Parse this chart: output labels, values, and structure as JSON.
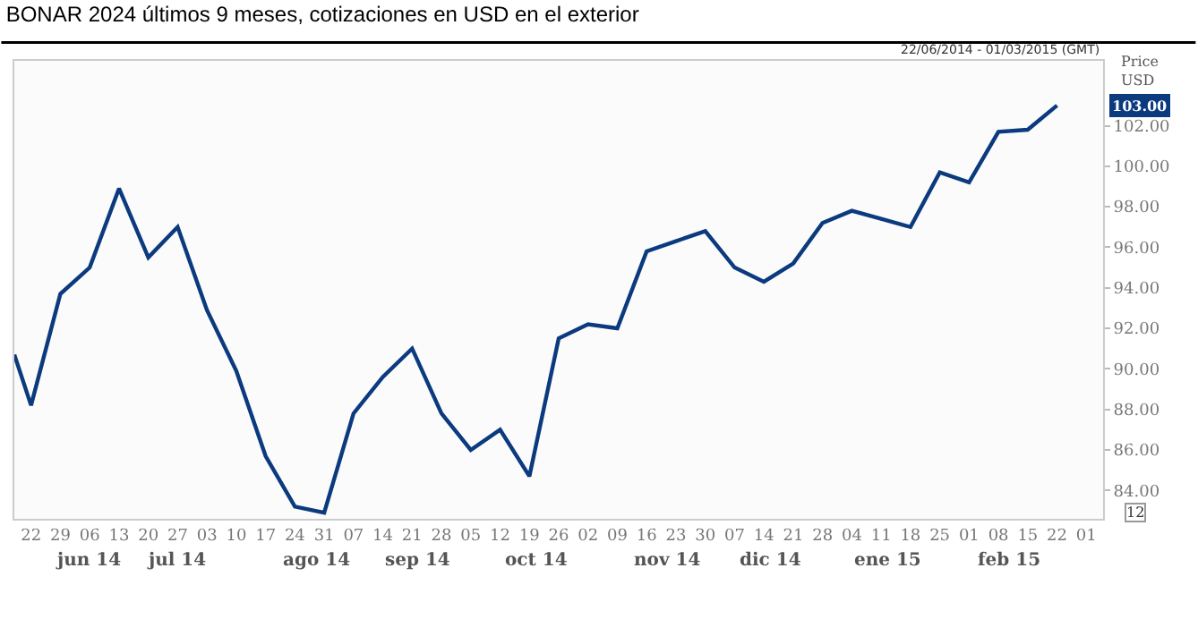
{
  "chart_data": {
    "type": "line",
    "title": "BONAR 2024 últimos 9 meses, cotizaciones en USD en el exterior",
    "ylabel": "Price\nUSD",
    "x": [
      "2014-06-18",
      "2014-06-22",
      "2014-06-29",
      "2014-07-06",
      "2014-07-13",
      "2014-07-20",
      "2014-07-27",
      "2014-08-03",
      "2014-08-10",
      "2014-08-17",
      "2014-08-24",
      "2014-08-31",
      "2014-09-07",
      "2014-09-14",
      "2014-09-21",
      "2014-09-28",
      "2014-10-05",
      "2014-10-12",
      "2014-10-19",
      "2014-10-26",
      "2014-11-02",
      "2014-11-09",
      "2014-11-16",
      "2014-11-23",
      "2014-11-30",
      "2014-12-07",
      "2014-12-14",
      "2014-12-21",
      "2014-12-28",
      "2015-01-04",
      "2015-01-11",
      "2015-01-18",
      "2015-01-25",
      "2015-02-01",
      "2015-02-08",
      "2015-02-15",
      "2015-02-22"
    ],
    "series": [
      {
        "color": "#0b3a7e",
        "values": [
          90.7,
          88.2,
          93.7,
          95.0,
          98.9,
          95.5,
          97.0,
          92.9,
          89.9,
          85.7,
          83.2,
          82.9,
          87.8,
          89.6,
          91.0,
          87.8,
          86.0,
          87.0,
          84.7,
          91.5,
          92.2,
          92.0,
          95.8,
          96.3,
          96.8,
          95.0,
          94.3,
          95.2,
          97.2,
          97.8,
          97.4,
          97.0,
          99.7,
          99.2,
          101.7,
          101.8,
          103.0
        ]
      }
    ],
    "xlim": [
      "2014-06-18",
      "2015-03-05"
    ],
    "xticks": [
      {
        "value": "2014-06-22",
        "label": "22"
      },
      {
        "value": "2014-06-29",
        "label": "29"
      },
      {
        "value": "2014-07-06",
        "label": "06"
      },
      {
        "value": "2014-07-13",
        "label": "13"
      },
      {
        "value": "2014-07-20",
        "label": "20"
      },
      {
        "value": "2014-07-27",
        "label": "27"
      },
      {
        "value": "2014-08-03",
        "label": "03"
      },
      {
        "value": "2014-08-10",
        "label": "10"
      },
      {
        "value": "2014-08-17",
        "label": "17"
      },
      {
        "value": "2014-08-24",
        "label": "24"
      },
      {
        "value": "2014-08-31",
        "label": "31"
      },
      {
        "value": "2014-09-07",
        "label": "07"
      },
      {
        "value": "2014-09-14",
        "label": "14"
      },
      {
        "value": "2014-09-21",
        "label": "21"
      },
      {
        "value": "2014-09-28",
        "label": "28"
      },
      {
        "value": "2014-10-05",
        "label": "05"
      },
      {
        "value": "2014-10-12",
        "label": "12"
      },
      {
        "value": "2014-10-19",
        "label": "19"
      },
      {
        "value": "2014-10-26",
        "label": "26"
      },
      {
        "value": "2014-11-02",
        "label": "02"
      },
      {
        "value": "2014-11-09",
        "label": "09"
      },
      {
        "value": "2014-11-16",
        "label": "16"
      },
      {
        "value": "2014-11-23",
        "label": "23"
      },
      {
        "value": "2014-11-30",
        "label": "30"
      },
      {
        "value": "2014-12-07",
        "label": "07"
      },
      {
        "value": "2014-12-14",
        "label": "14"
      },
      {
        "value": "2014-12-21",
        "label": "21"
      },
      {
        "value": "2014-12-28",
        "label": "28"
      },
      {
        "value": "2015-01-04",
        "label": "04"
      },
      {
        "value": "2015-01-11",
        "label": "11"
      },
      {
        "value": "2015-01-18",
        "label": "18"
      },
      {
        "value": "2015-01-25",
        "label": "25"
      },
      {
        "value": "2015-02-01",
        "label": "01"
      },
      {
        "value": "2015-02-08",
        "label": "08"
      },
      {
        "value": "2015-02-15",
        "label": "15"
      },
      {
        "value": "2015-02-22",
        "label": "22"
      },
      {
        "value": "2015-03-01",
        "label": "01"
      }
    ],
    "ylim": [
      82.6,
      105.2
    ],
    "yticks": [
      {
        "value": 84,
        "label": "84.00"
      },
      {
        "value": 86,
        "label": "86.00"
      },
      {
        "value": 88,
        "label": "88.00"
      },
      {
        "value": 90,
        "label": "90.00"
      },
      {
        "value": 92,
        "label": "92.00"
      },
      {
        "value": 94,
        "label": "94.00"
      },
      {
        "value": 96,
        "label": "96.00"
      },
      {
        "value": 98,
        "label": "98.00"
      },
      {
        "value": 100,
        "label": "100.00"
      },
      {
        "value": 102,
        "label": "102.00"
      }
    ],
    "marker": "none",
    "line_style": "solid",
    "annotations": [
      "22/06/2014 - 01/03/2015 (GMT)",
      "12",
      {
        "text": "103.00",
        "y": 103.0
      },
      "jun 14",
      "jul 14",
      "ago 14",
      "sep 14",
      "oct 14",
      "nov 14",
      "dic 14",
      "ene 15",
      "feb 15"
    ]
  }
}
